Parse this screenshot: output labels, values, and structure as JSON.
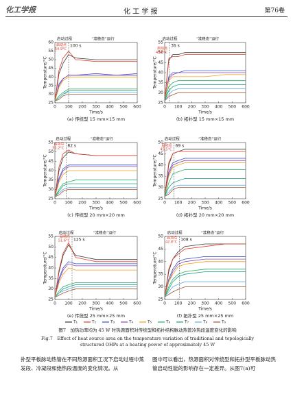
{
  "header": {
    "logo": "化工学报",
    "journal": "化 工 学 报",
    "volume": "第76卷"
  },
  "chart_data": [
    {
      "type": "line",
      "title": "(a) 传统型 15 mm×15 mm",
      "xlabel": "Time/s",
      "ylabel": "Temperature/°C",
      "phase_labels": [
        "启动过程",
        "“准稳态”运行"
      ],
      "startup": {
        "value": 100,
        "label": "100 s"
      },
      "startup_note": [
        "启动点",
        "54.9°C"
      ],
      "x": [
        0,
        30,
        60,
        100,
        150,
        300,
        450,
        600
      ],
      "xlim": [
        0,
        600
      ],
      "xticks": [
        0,
        100,
        200,
        300,
        400,
        500,
        600
      ],
      "ylim": [
        25,
        60
      ],
      "yticks": [
        25,
        30,
        35,
        40,
        45,
        50,
        55,
        60
      ],
      "series": [
        {
          "name": "T₁",
          "color": "#333333",
          "values": [
            26,
            42,
            48,
            53,
            51,
            50,
            50,
            50
          ]
        },
        {
          "name": "T₂",
          "color": "#e03c28",
          "values": [
            26,
            44,
            51,
            55,
            50,
            49,
            49,
            49
          ]
        },
        {
          "name": "T₃",
          "color": "#2f4fbf",
          "values": [
            26,
            36,
            39,
            41,
            41,
            41,
            41,
            41
          ]
        },
        {
          "name": "T₄",
          "color": "#8e44ad",
          "values": [
            26,
            35,
            39,
            41,
            41,
            42,
            41,
            42
          ]
        },
        {
          "name": "T₅",
          "color": "#f39c12",
          "values": [
            26,
            34,
            38,
            40,
            40,
            40,
            40,
            40
          ]
        },
        {
          "name": "T₆",
          "color": "#27ae60",
          "values": [
            26,
            29,
            31,
            33,
            33,
            33,
            33,
            33
          ]
        },
        {
          "name": "T₇",
          "color": "#16a085",
          "values": [
            26,
            28,
            30,
            32,
            32,
            32,
            32,
            32
          ]
        },
        {
          "name": "T₈",
          "color": "#5dade2",
          "values": [
            26,
            28,
            30,
            31,
            31,
            31,
            31,
            31
          ]
        },
        {
          "name": "T₉",
          "color": "#a0522d",
          "values": [
            26,
            27,
            29,
            30,
            30,
            30,
            30,
            30
          ]
        }
      ]
    },
    {
      "type": "line",
      "title": "(b) 拓扑型 15 mm×15 mm",
      "xlabel": "Time/s",
      "ylabel": "Temperature/°C",
      "phase_labels": [
        "启动过程",
        "“准稳态”运行"
      ],
      "startup": {
        "value": 36,
        "label": "36 s"
      },
      "startup_note": [
        "启动点",
        "48.6°C"
      ],
      "x": [
        0,
        30,
        60,
        100,
        150,
        300,
        450,
        600
      ],
      "xlim": [
        0,
        600
      ],
      "xticks": [
        0,
        100,
        200,
        300,
        400,
        500,
        600
      ],
      "ylim": [
        25,
        55
      ],
      "yticks": [
        25,
        30,
        35,
        40,
        45,
        50,
        55
      ],
      "series": [
        {
          "name": "T₁",
          "color": "#333333",
          "values": [
            26,
            46,
            49,
            49,
            50,
            50,
            50,
            50
          ]
        },
        {
          "name": "T₂",
          "color": "#e03c28",
          "values": [
            26,
            47,
            48,
            48,
            49,
            49,
            49,
            49
          ]
        },
        {
          "name": "T₃",
          "color": "#2f4fbf",
          "values": [
            26,
            38,
            40,
            40,
            41,
            41,
            41,
            41
          ]
        },
        {
          "name": "T₄",
          "color": "#8e44ad",
          "values": [
            26,
            37,
            39,
            40,
            40,
            40,
            40,
            40
          ]
        },
        {
          "name": "T₅",
          "color": "#f39c12",
          "values": [
            26,
            36,
            38,
            38,
            38,
            38,
            39,
            39
          ]
        },
        {
          "name": "T₆",
          "color": "#27ae60",
          "values": [
            26,
            33,
            35,
            36,
            36,
            36,
            36,
            36
          ]
        },
        {
          "name": "T₇",
          "color": "#16a085",
          "values": [
            26,
            31,
            33,
            34,
            34,
            34,
            34,
            34
          ]
        },
        {
          "name": "T₈",
          "color": "#5dade2",
          "values": [
            26,
            29,
            31,
            32,
            32,
            32,
            32,
            32
          ]
        },
        {
          "name": "T₉",
          "color": "#a0522d",
          "values": [
            26,
            28,
            29,
            30,
            30,
            30,
            30,
            30
          ]
        }
      ]
    },
    {
      "type": "line",
      "title": "(c) 传统型 20 mm×20 mm",
      "xlabel": "Time/s",
      "ylabel": "Temperature/°C",
      "phase_labels": [
        "启动过程",
        "“准稳态”运行"
      ],
      "startup": {
        "value": 82,
        "label": "82 s"
      },
      "startup_note": [
        "启动点",
        "51.2°C"
      ],
      "x": [
        0,
        30,
        60,
        100,
        150,
        300,
        450,
        600
      ],
      "xlim": [
        0,
        600
      ],
      "xticks": [
        0,
        100,
        200,
        300,
        400,
        500,
        600
      ],
      "ylim": [
        25,
        55
      ],
      "yticks": [
        25,
        30,
        35,
        40,
        45,
        50,
        55
      ],
      "series": [
        {
          "name": "T₁",
          "color": "#333333",
          "values": [
            26,
            40,
            47,
            50,
            49,
            48,
            48,
            48
          ]
        },
        {
          "name": "T₂",
          "color": "#e03c28",
          "values": [
            26,
            42,
            49,
            51,
            49,
            48,
            48,
            48
          ]
        },
        {
          "name": "T₃",
          "color": "#2f4fbf",
          "values": [
            26,
            36,
            41,
            43,
            43,
            43,
            43,
            43
          ]
        },
        {
          "name": "T₄",
          "color": "#8e44ad",
          "values": [
            26,
            35,
            40,
            42,
            42,
            42,
            42,
            42
          ]
        },
        {
          "name": "T₅",
          "color": "#f39c12",
          "values": [
            26,
            34,
            38,
            40,
            40,
            40,
            40,
            40
          ]
        },
        {
          "name": "T₆",
          "color": "#27ae60",
          "values": [
            26,
            30,
            33,
            34,
            35,
            35,
            35,
            35
          ]
        },
        {
          "name": "T₇",
          "color": "#16a085",
          "values": [
            26,
            29,
            32,
            33,
            33,
            33,
            33,
            33
          ]
        },
        {
          "name": "T₈",
          "color": "#5dade2",
          "values": [
            26,
            28,
            30,
            31,
            31,
            31,
            31,
            31
          ]
        },
        {
          "name": "T₉",
          "color": "#a0522d",
          "values": [
            26,
            27,
            29,
            30,
            30,
            30,
            30,
            30
          ]
        }
      ]
    },
    {
      "type": "line",
      "title": "(d) 拓扑型 20 mm×20 mm",
      "xlabel": "Time/s",
      "ylabel": "Temperature/°C",
      "phase_labels": [
        "启动过程",
        "“准稳态”运行"
      ],
      "startup": {
        "value": 69,
        "label": "69 s"
      },
      "startup_note": [
        "启动点",
        "45.5°C"
      ],
      "x": [
        0,
        30,
        60,
        100,
        150,
        300,
        450,
        600
      ],
      "xlim": [
        0,
        600
      ],
      "xticks": [
        0,
        100,
        200,
        300,
        400,
        500,
        600
      ],
      "ylim": [
        25,
        50
      ],
      "yticks": [
        25,
        30,
        35,
        40,
        45,
        50
      ],
      "series": [
        {
          "name": "T₁",
          "color": "#333333",
          "values": [
            26,
            40,
            45,
            46,
            47,
            47,
            47,
            47
          ]
        },
        {
          "name": "T₂",
          "color": "#e03c28",
          "values": [
            26,
            41,
            45,
            46,
            46,
            46,
            46,
            46
          ]
        },
        {
          "name": "T₃",
          "color": "#2f4fbf",
          "values": [
            26,
            37,
            41,
            42,
            43,
            43,
            43,
            43
          ]
        },
        {
          "name": "T₄",
          "color": "#8e44ad",
          "values": [
            26,
            36,
            40,
            41,
            42,
            42,
            42,
            42
          ]
        },
        {
          "name": "T₅",
          "color": "#f39c12",
          "values": [
            26,
            35,
            39,
            40,
            41,
            41,
            41,
            41
          ]
        },
        {
          "name": "T₆",
          "color": "#27ae60",
          "values": [
            26,
            32,
            36,
            37,
            38,
            38,
            38,
            38
          ]
        },
        {
          "name": "T₇",
          "color": "#16a085",
          "values": [
            26,
            30,
            32,
            33,
            34,
            34,
            34,
            34
          ]
        },
        {
          "name": "T₈",
          "color": "#5dade2",
          "values": [
            26,
            28,
            30,
            31,
            31,
            31,
            31,
            31
          ]
        },
        {
          "name": "T₉",
          "color": "#a0522d",
          "values": [
            26,
            27,
            29,
            30,
            30,
            30,
            30,
            30
          ]
        }
      ]
    },
    {
      "type": "line",
      "title": "(e) 传统型 25 mm×25 mm",
      "xlabel": "Time/s",
      "ylabel": "Temperature/°C",
      "phase_labels": [
        "启动过程",
        "“准稳态”运行"
      ],
      "startup": {
        "value": 125,
        "label": "125 s"
      },
      "startup_note": [
        "启动点",
        "51.6°C"
      ],
      "x": [
        0,
        30,
        60,
        100,
        150,
        300,
        450,
        600
      ],
      "xlim": [
        0,
        600
      ],
      "xticks": [
        0,
        100,
        200,
        300,
        400,
        500,
        600
      ],
      "ylim": [
        25,
        55
      ],
      "yticks": [
        25,
        30,
        35,
        40,
        45,
        50,
        55
      ],
      "series": [
        {
          "name": "T₁",
          "color": "#333333",
          "values": [
            26,
            38,
            46,
            51,
            46,
            44,
            44,
            44
          ]
        },
        {
          "name": "T₂",
          "color": "#e03c28",
          "values": [
            26,
            39,
            47,
            52,
            45,
            43,
            43,
            43
          ]
        },
        {
          "name": "T₃",
          "color": "#2f4fbf",
          "values": [
            26,
            35,
            40,
            43,
            42,
            42,
            42,
            42
          ]
        },
        {
          "name": "T₄",
          "color": "#8e44ad",
          "values": [
            26,
            34,
            39,
            42,
            41,
            41,
            41,
            41
          ]
        },
        {
          "name": "T₅",
          "color": "#f39c12",
          "values": [
            26,
            33,
            37,
            40,
            39,
            39,
            39,
            39
          ]
        },
        {
          "name": "T₆",
          "color": "#27ae60",
          "values": [
            26,
            29,
            31,
            32,
            33,
            33,
            33,
            33
          ]
        },
        {
          "name": "T₇",
          "color": "#16a085",
          "values": [
            26,
            28,
            30,
            31,
            32,
            32,
            32,
            32
          ]
        },
        {
          "name": "T₈",
          "color": "#5dade2",
          "values": [
            26,
            28,
            29,
            30,
            31,
            31,
            31,
            31
          ]
        },
        {
          "name": "T₉",
          "color": "#a0522d",
          "values": [
            26,
            27,
            28,
            29,
            30,
            30,
            30,
            30
          ]
        }
      ]
    },
    {
      "type": "line",
      "title": "(f) 拓扑型 25 mm×25 mm",
      "xlabel": "Time/s",
      "ylabel": "Temperature/°C",
      "phase_labels": [
        "启动过程",
        "“准稳态”运行"
      ],
      "startup": {
        "value": 108,
        "label": "108 s"
      },
      "startup_note": [
        "启动点",
        "42.8°C"
      ],
      "x": [
        0,
        30,
        60,
        100,
        150,
        300,
        450,
        600
      ],
      "xlim": [
        0,
        600
      ],
      "xticks": [
        0,
        100,
        200,
        300,
        400,
        500,
        600
      ],
      "ylim": [
        25,
        50
      ],
      "yticks": [
        25,
        30,
        35,
        40,
        45,
        50
      ],
      "series": [
        {
          "name": "T₁",
          "color": "#333333",
          "values": [
            26,
            36,
            41,
            44,
            46,
            47,
            47,
            47
          ]
        },
        {
          "name": "T₂",
          "color": "#e03c28",
          "values": [
            26,
            37,
            41,
            43,
            45,
            46,
            47,
            47
          ]
        },
        {
          "name": "T₃",
          "color": "#2f4fbf",
          "values": [
            26,
            33,
            37,
            40,
            41,
            42,
            42,
            42
          ]
        },
        {
          "name": "T₄",
          "color": "#8e44ad",
          "values": [
            26,
            32,
            36,
            39,
            40,
            41,
            41,
            41
          ]
        },
        {
          "name": "T₅",
          "color": "#f39c12",
          "values": [
            26,
            32,
            35,
            38,
            39,
            40,
            40,
            40
          ]
        },
        {
          "name": "T₆",
          "color": "#27ae60",
          "values": [
            26,
            30,
            33,
            35,
            36,
            37,
            37,
            37
          ]
        },
        {
          "name": "T₇",
          "color": "#16a085",
          "values": [
            26,
            29,
            32,
            34,
            35,
            36,
            36,
            36
          ]
        },
        {
          "name": "T₈",
          "color": "#5dade2",
          "values": [
            26,
            28,
            30,
            31,
            32,
            32,
            32,
            32
          ]
        },
        {
          "name": "T₉",
          "color": "#a0522d",
          "values": [
            26,
            27,
            28,
            29,
            30,
            30,
            30,
            30
          ]
        }
      ]
    }
  ],
  "caption": {
    "zh": "图7　加热功率均为 45 W 时热源面积对传统型和拓扑结构脉动热管冷热段温度变化的影响",
    "en": "Fig.7　Effect of heat source area on the temperature variation of traditional and topologically structured OHPs at a heating power of approximately 45 W"
  },
  "body": [
    "扑型平板脉动热管在不同热源面积工况下启动过程中蒸发段、冷凝段和绝热段温度的变化情况。从",
    "图中可以看出，热源面积对传统型和拓扑型平板脉动热管启动性能的影响存在一定差异。从图7(a)可"
  ]
}
